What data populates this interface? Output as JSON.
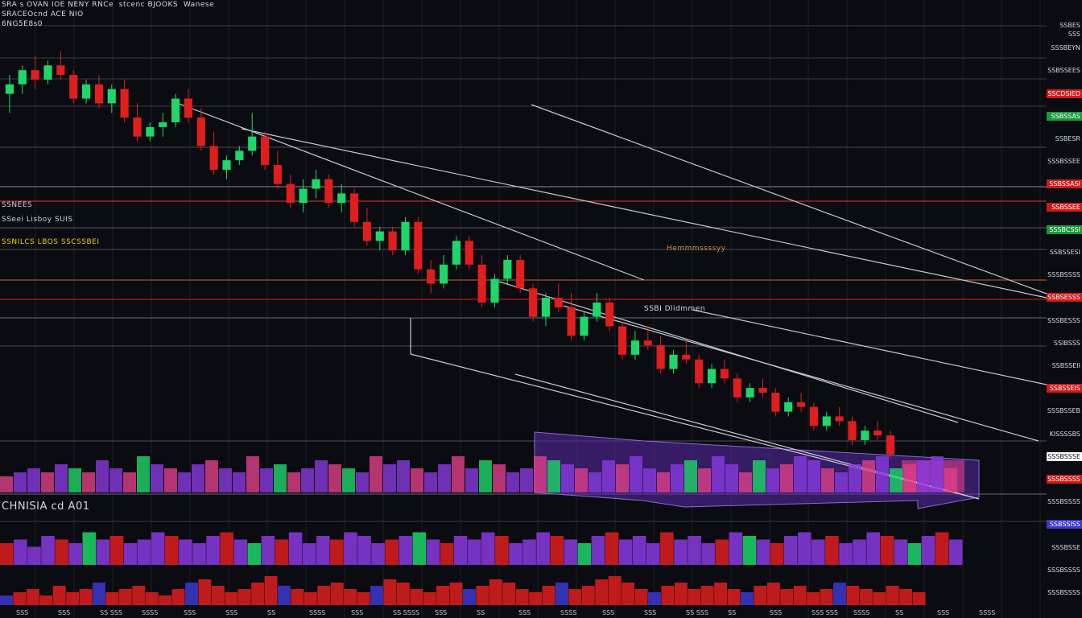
{
  "header": {
    "title": "SRA s OVAN IOE NENY RNCe",
    "subtitle_1": "stcenc BJOOKS",
    "subtitle_2": "Wanese",
    "line2": "SRACEOcnd ACE NIO",
    "line3": "6NG5E8s0"
  },
  "left_annotations": [
    {
      "text": "SSNEES",
      "color": "#d0d0d8"
    },
    {
      "text": "SSeei Lisboy SUIS",
      "color": "#d0d0d8"
    },
    {
      "text": "SSNILCS LBOS SSCSSBEI",
      "color": "#e8d000"
    }
  ],
  "mid_annotations": [
    {
      "text": "Hemmmssssyy",
      "color": "#d08a3a"
    },
    {
      "text": "SSBI Dlidmmen",
      "color": "#d8d8e0"
    }
  ],
  "indicator_label": "CHNISIA cd A01",
  "price_tags": [
    {
      "text": "SSBES SSS",
      "bg": "",
      "fg": "#d8d8e0"
    },
    {
      "text": "SSSBEYN",
      "bg": "",
      "fg": "#d8d8e0"
    },
    {
      "text": "SSBSSEES",
      "bg": "",
      "fg": "#d8d8e0"
    },
    {
      "text": "SSCDSIED",
      "bg": "#d01a1a",
      "fg": "#ffffff"
    },
    {
      "text": "SSBSSAS",
      "bg": "#1a9a3a",
      "fg": "#ffffff"
    },
    {
      "text": "SSBESR",
      "bg": "",
      "fg": "#d8d8e0"
    },
    {
      "text": "SSSBSSEE",
      "bg": "",
      "fg": "#d8d8e0"
    },
    {
      "text": "SSBSSASI",
      "bg": "#d01a1a",
      "fg": "#ffffff"
    },
    {
      "text": "SSBSSEE",
      "bg": "#d01a1a",
      "fg": "#ffffff"
    },
    {
      "text": "SSSBCSSI",
      "bg": "#1a9a3a",
      "fg": "#ffffff"
    },
    {
      "text": "SSBSSESI",
      "bg": "",
      "fg": "#d8d8e0"
    },
    {
      "text": "SSSBSSSS",
      "bg": "",
      "fg": "#d8d8e0"
    },
    {
      "text": "SSBSESSS",
      "bg": "#d01a1a",
      "fg": "#ffffff"
    },
    {
      "text": "SSSBESSS",
      "bg": "",
      "fg": "#d8d8e0"
    },
    {
      "text": "SSIBSSS",
      "bg": "",
      "fg": "#d8d8e0"
    },
    {
      "text": "SSBSSEII",
      "bg": "",
      "fg": "#d8d8e0"
    },
    {
      "text": "SSBSSEIS",
      "bg": "#d01a1a",
      "fg": "#ffffff"
    },
    {
      "text": "SSSBSSEB",
      "bg": "",
      "fg": "#d8d8e0"
    },
    {
      "text": "KISSSSBS",
      "bg": "",
      "fg": "#d8d8e0"
    },
    {
      "text": "SSSBSSSE",
      "bg": "#ffffff",
      "fg": "#111111"
    },
    {
      "text": "SSSBSSSS",
      "bg": "#d01a1a",
      "fg": "#ffffff"
    },
    {
      "text": "SSSBSSSS",
      "bg": "",
      "fg": "#d8d8e0"
    },
    {
      "text": "SSBSSISS",
      "bg": "#3a3ad0",
      "fg": "#ffffff"
    },
    {
      "text": "SSSBSSE",
      "bg": "",
      "fg": "#d8d8e0"
    },
    {
      "text": "SSSBSSSS",
      "bg": "",
      "fg": "#d8d8e0"
    },
    {
      "text": "SSSBSSSS",
      "bg": "",
      "fg": "#d8d8e0"
    }
  ],
  "x_axis_labels": [
    "SSS",
    "SSS",
    "SS SSS",
    "SSSS",
    "SSS",
    "SSS",
    "SS",
    "SSSS",
    "SSS",
    "SS SSSS",
    "SSS",
    "SS",
    "SSS",
    "SSSS",
    "SSS",
    "SSS",
    "SS SSS",
    "SS",
    "SSS",
    "SSS SSS",
    "SSSS",
    "SS",
    "SSS",
    "SSSS"
  ],
  "colors": {
    "background": "#0b0c12",
    "bull": "#1fd66a",
    "bear": "#e01e1e",
    "grid": "#2a2c36",
    "trend": "#c8c8d0",
    "channel_fill": "#5a2aa8",
    "volume_purple": "#8a3ae0",
    "volume_pink": "#e0408a"
  },
  "chart_data": {
    "type": "candlestick",
    "title": "",
    "xlabel": "",
    "ylabel": "",
    "trend": "downtrend",
    "candles": [
      {
        "o": 92,
        "h": 96,
        "l": 88,
        "c": 94
      },
      {
        "o": 94,
        "h": 98,
        "l": 92,
        "c": 97
      },
      {
        "o": 97,
        "h": 100,
        "l": 93,
        "c": 95
      },
      {
        "o": 95,
        "h": 99,
        "l": 94,
        "c": 98
      },
      {
        "o": 98,
        "h": 101,
        "l": 95,
        "c": 96
      },
      {
        "o": 96,
        "h": 97,
        "l": 90,
        "c": 91
      },
      {
        "o": 91,
        "h": 95,
        "l": 90,
        "c": 94
      },
      {
        "o": 94,
        "h": 96,
        "l": 89,
        "c": 90
      },
      {
        "o": 90,
        "h": 94,
        "l": 88,
        "c": 93
      },
      {
        "o": 93,
        "h": 95,
        "l": 86,
        "c": 87
      },
      {
        "o": 87,
        "h": 90,
        "l": 82,
        "c": 83
      },
      {
        "o": 83,
        "h": 86,
        "l": 82,
        "c": 85
      },
      {
        "o": 85,
        "h": 88,
        "l": 83,
        "c": 86
      },
      {
        "o": 86,
        "h": 92,
        "l": 85,
        "c": 91
      },
      {
        "o": 91,
        "h": 93,
        "l": 86,
        "c": 87
      },
      {
        "o": 87,
        "h": 89,
        "l": 80,
        "c": 81
      },
      {
        "o": 81,
        "h": 84,
        "l": 75,
        "c": 76
      },
      {
        "o": 76,
        "h": 79,
        "l": 74,
        "c": 78
      },
      {
        "o": 78,
        "h": 81,
        "l": 77,
        "c": 80
      },
      {
        "o": 80,
        "h": 88,
        "l": 79,
        "c": 83
      },
      {
        "o": 83,
        "h": 84,
        "l": 76,
        "c": 77
      },
      {
        "o": 77,
        "h": 80,
        "l": 72,
        "c": 73
      },
      {
        "o": 73,
        "h": 75,
        "l": 68,
        "c": 69
      },
      {
        "o": 69,
        "h": 74,
        "l": 67,
        "c": 72
      },
      {
        "o": 72,
        "h": 76,
        "l": 70,
        "c": 74
      },
      {
        "o": 74,
        "h": 75,
        "l": 68,
        "c": 69
      },
      {
        "o": 69,
        "h": 73,
        "l": 67,
        "c": 71
      },
      {
        "o": 71,
        "h": 72,
        "l": 64,
        "c": 65
      },
      {
        "o": 65,
        "h": 68,
        "l": 60,
        "c": 61
      },
      {
        "o": 61,
        "h": 64,
        "l": 59,
        "c": 63
      },
      {
        "o": 63,
        "h": 64,
        "l": 58,
        "c": 59
      },
      {
        "o": 59,
        "h": 66,
        "l": 58,
        "c": 65
      },
      {
        "o": 65,
        "h": 66,
        "l": 54,
        "c": 55
      },
      {
        "o": 55,
        "h": 57,
        "l": 50,
        "c": 52
      },
      {
        "o": 52,
        "h": 58,
        "l": 51,
        "c": 56
      },
      {
        "o": 56,
        "h": 62,
        "l": 55,
        "c": 61
      },
      {
        "o": 61,
        "h": 62,
        "l": 55,
        "c": 56
      },
      {
        "o": 56,
        "h": 58,
        "l": 47,
        "c": 48
      },
      {
        "o": 48,
        "h": 54,
        "l": 47,
        "c": 53
      },
      {
        "o": 53,
        "h": 58,
        "l": 52,
        "c": 57
      },
      {
        "o": 57,
        "h": 58,
        "l": 50,
        "c": 51
      },
      {
        "o": 51,
        "h": 52,
        "l": 44,
        "c": 45
      },
      {
        "o": 45,
        "h": 50,
        "l": 43,
        "c": 49
      },
      {
        "o": 49,
        "h": 52,
        "l": 46,
        "c": 47
      },
      {
        "o": 47,
        "h": 50,
        "l": 40,
        "c": 41
      },
      {
        "o": 41,
        "h": 46,
        "l": 40,
        "c": 45
      },
      {
        "o": 45,
        "h": 50,
        "l": 44,
        "c": 48
      },
      {
        "o": 48,
        "h": 49,
        "l": 42,
        "c": 43
      },
      {
        "o": 43,
        "h": 44,
        "l": 36,
        "c": 37
      },
      {
        "o": 37,
        "h": 42,
        "l": 36,
        "c": 40
      },
      {
        "o": 40,
        "h": 43,
        "l": 38,
        "c": 39
      },
      {
        "o": 39,
        "h": 41,
        "l": 33,
        "c": 34
      },
      {
        "o": 34,
        "h": 38,
        "l": 33,
        "c": 37
      },
      {
        "o": 37,
        "h": 40,
        "l": 35,
        "c": 36
      },
      {
        "o": 36,
        "h": 37,
        "l": 30,
        "c": 31
      },
      {
        "o": 31,
        "h": 35,
        "l": 30,
        "c": 34
      },
      {
        "o": 34,
        "h": 36,
        "l": 31,
        "c": 32
      },
      {
        "o": 32,
        "h": 33,
        "l": 27,
        "c": 28
      },
      {
        "o": 28,
        "h": 31,
        "l": 27,
        "c": 30
      },
      {
        "o": 30,
        "h": 32,
        "l": 28,
        "c": 29
      },
      {
        "o": 29,
        "h": 30,
        "l": 24,
        "c": 25
      },
      {
        "o": 25,
        "h": 28,
        "l": 24,
        "c": 27
      },
      {
        "o": 27,
        "h": 29,
        "l": 25,
        "c": 26
      },
      {
        "o": 26,
        "h": 27,
        "l": 21,
        "c": 22
      },
      {
        "o": 22,
        "h": 25,
        "l": 21,
        "c": 24
      },
      {
        "o": 24,
        "h": 26,
        "l": 22,
        "c": 23
      },
      {
        "o": 23,
        "h": 24,
        "l": 18,
        "c": 19
      },
      {
        "o": 19,
        "h": 22,
        "l": 18,
        "c": 21
      },
      {
        "o": 21,
        "h": 23,
        "l": 19,
        "c": 20
      },
      {
        "o": 20,
        "h": 21,
        "l": 15,
        "c": 16
      }
    ],
    "volume": [
      4,
      5,
      6,
      5,
      7,
      6,
      5,
      8,
      6,
      5,
      9,
      7,
      6,
      5,
      7,
      8,
      6,
      5,
      9,
      6,
      7,
      5,
      6,
      8,
      7,
      6,
      5,
      9,
      7,
      8,
      6,
      5,
      7,
      9,
      6,
      8,
      7,
      5,
      6,
      9,
      8,
      7,
      6,
      5,
      8,
      7,
      9,
      6,
      5,
      7,
      8,
      6,
      9,
      7,
      5,
      8,
      6,
      7,
      9,
      8,
      6,
      5,
      7,
      8,
      9,
      6,
      7,
      8,
      9,
      6
    ],
    "oscillator": [
      6,
      7,
      5,
      8,
      7,
      6,
      9,
      7,
      8,
      6,
      7,
      9,
      8,
      7,
      6,
      8,
      9,
      7,
      6,
      8,
      7,
      9,
      6,
      8,
      7,
      9,
      8,
      6,
      7,
      8,
      9,
      7,
      6,
      8,
      7,
      9,
      8,
      6,
      7,
      9,
      8,
      7,
      6,
      8,
      9,
      7,
      8,
      6,
      9,
      7,
      8,
      6,
      7,
      9,
      8,
      7,
      6,
      8,
      9,
      7,
      8,
      6,
      7,
      9,
      8,
      7,
      6,
      8,
      9,
      7
    ],
    "histogram": [
      3,
      4,
      5,
      3,
      6,
      4,
      5,
      7,
      4,
      5,
      6,
      4,
      3,
      5,
      7,
      8,
      6,
      4,
      5,
      7,
      9,
      6,
      5,
      4,
      6,
      7,
      5,
      4,
      6,
      8,
      7,
      5,
      4,
      6,
      7,
      5,
      6,
      8,
      7,
      5,
      4,
      6,
      7,
      5,
      6,
      8,
      9,
      7,
      5,
      4,
      6,
      7,
      5,
      6,
      7,
      5,
      4,
      6,
      7,
      5,
      6,
      4,
      5,
      7,
      6,
      5,
      4,
      6,
      5,
      4
    ],
    "ylim": [
      10,
      105
    ]
  }
}
